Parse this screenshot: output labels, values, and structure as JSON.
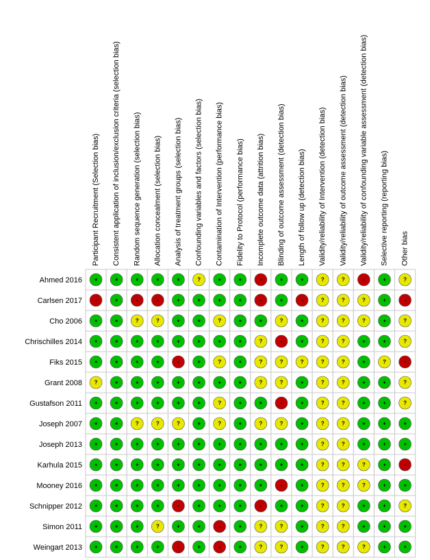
{
  "columns": [
    "Participant Recruitment (Selection bias)",
    "Consistent application of inclusion/exclusion criteria (selection bias)",
    "Random sequence generation (selection bias)",
    "Allocation concealment (selection bias)",
    "Analysis of treatment groups (selection bias)",
    "Confounding variables and factors (selection bias)",
    "Contamination of Intervention (performance bias)",
    "Fidelity to Protocol (performance bias)",
    "Incomplete outcome data (attrition bias)",
    "Blinding of outcome assessment (detection bias)",
    "Length of follow up (detection bias)",
    "Validity/reliability of Intervention (detection bias)",
    "Validity/reliability of outcome assessment (detection bias)",
    "Validity/reliability of confounding variable assessment (detection bias)",
    "Selective reporting (reporting bias)",
    "Other bias"
  ],
  "rows": [
    {
      "study": "Ahmed 2016",
      "cells": [
        "+",
        "+",
        "+",
        "+",
        "+",
        "?",
        "+",
        "+",
        "-",
        "+",
        "+",
        "?",
        "?",
        "-",
        "+",
        "?"
      ]
    },
    {
      "study": "Carlsen 2017",
      "cells": [
        "-",
        "+",
        "-",
        "-",
        "+",
        "+",
        "+",
        "+",
        "-",
        "+",
        "-",
        "?",
        "?",
        "?",
        "+",
        "-"
      ]
    },
    {
      "study": "Cho 2006",
      "cells": [
        "+",
        "+",
        "?",
        "?",
        "+",
        "+",
        "?",
        "+",
        "+",
        "?",
        "+",
        "?",
        "?",
        "?",
        "+",
        "?"
      ]
    },
    {
      "study": "Chrischilles 2014",
      "cells": [
        "+",
        "+",
        "+",
        "+",
        "+",
        "+",
        "+",
        "+",
        "?",
        "-",
        "+",
        "?",
        "?",
        "+",
        "+",
        "?"
      ]
    },
    {
      "study": "Fiks 2015",
      "cells": [
        "+",
        "+",
        "+",
        "+",
        "-",
        "+",
        "?",
        "+",
        "?",
        "?",
        "?",
        "?",
        "?",
        "+",
        "?",
        "-"
      ]
    },
    {
      "study": "Grant 2008",
      "cells": [
        "?",
        "+",
        "+",
        "+",
        "+",
        "+",
        "+",
        "+",
        "?",
        "?",
        "+",
        "?",
        "?",
        "+",
        "+",
        "?"
      ]
    },
    {
      "study": "Gustafson 2011",
      "cells": [
        "+",
        "+",
        "+",
        "+",
        "+",
        "+",
        "?",
        "+",
        "+",
        "-",
        "+",
        "?",
        "?",
        "+",
        "+",
        "?"
      ]
    },
    {
      "study": "Joseph 2007",
      "cells": [
        "+",
        "+",
        "?",
        "?",
        "?",
        "+",
        "?",
        "+",
        "?",
        "?",
        "+",
        "?",
        "?",
        "+",
        "+",
        "+"
      ]
    },
    {
      "study": "Joseph 2013",
      "cells": [
        "+",
        "+",
        "+",
        "+",
        "+",
        "+",
        "+",
        "+",
        "+",
        "+",
        "+",
        "?",
        "?",
        "+",
        "+",
        "+"
      ]
    },
    {
      "study": "Karhula 2015",
      "cells": [
        "+",
        "+",
        "+",
        "+",
        "+",
        "+",
        "+",
        "+",
        "+",
        "+",
        "+",
        "?",
        "?",
        "?",
        "+",
        "-"
      ]
    },
    {
      "study": "Mooney 2016",
      "cells": [
        "+",
        "+",
        "+",
        "+",
        "+",
        "+",
        "+",
        "+",
        "+",
        "-",
        "+",
        "?",
        "?",
        "?",
        "+",
        "+"
      ]
    },
    {
      "study": "Schnipper 2012",
      "cells": [
        "+",
        "+",
        "+",
        "+",
        "-",
        "+",
        "+",
        "+",
        "-",
        "+",
        "+",
        "?",
        "?",
        "+",
        "+",
        "?"
      ]
    },
    {
      "study": "Simon 2011",
      "cells": [
        "+",
        "+",
        "+",
        "?",
        "+",
        "+",
        "-",
        "+",
        "?",
        "?",
        "+",
        "?",
        "?",
        "+",
        "+",
        "+"
      ]
    },
    {
      "study": "Weingart 2013",
      "cells": [
        "+",
        "+",
        "+",
        "+",
        "-",
        "+",
        "-",
        "+",
        "?",
        "?",
        "+",
        "?",
        "?",
        "?",
        "+",
        "+"
      ]
    }
  ]
}
